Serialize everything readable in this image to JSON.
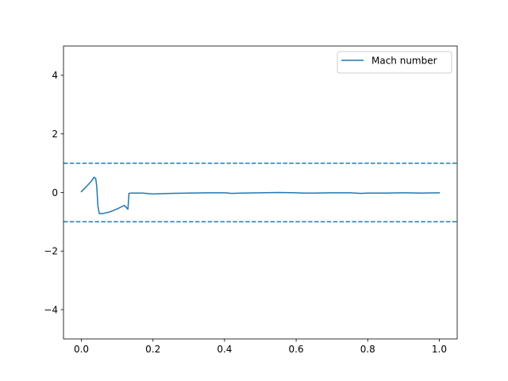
{
  "chart_data": {
    "type": "line",
    "title": "",
    "xlabel": "",
    "ylabel": "",
    "xlim": [
      -0.05,
      1.05
    ],
    "ylim": [
      -5,
      5
    ],
    "xticks": [
      0.0,
      0.2,
      0.4,
      0.6,
      0.8,
      1.0
    ],
    "xtick_labels": [
      "0.0",
      "0.2",
      "0.4",
      "0.6",
      "0.8",
      "1.0"
    ],
    "yticks": [
      -4,
      -2,
      0,
      2,
      4
    ],
    "ytick_labels": [
      "−4",
      "−2",
      "0",
      "2",
      "4"
    ],
    "grid": false,
    "legend": {
      "location": "upper right",
      "entries": [
        "Mach number"
      ]
    },
    "series": [
      {
        "name": "Mach number",
        "color": "#1f77b4",
        "style": "solid",
        "x": [
          0.0,
          0.01,
          0.02,
          0.03,
          0.035,
          0.04,
          0.043,
          0.046,
          0.05,
          0.06,
          0.08,
          0.1,
          0.12,
          0.126,
          0.13,
          0.133,
          0.14,
          0.17,
          0.2,
          0.25,
          0.3,
          0.35,
          0.4,
          0.42,
          0.45,
          0.5,
          0.55,
          0.6,
          0.62,
          0.65,
          0.7,
          0.75,
          0.78,
          0.8,
          0.85,
          0.9,
          0.95,
          1.0
        ],
        "y": [
          0.03,
          0.15,
          0.28,
          0.42,
          0.52,
          0.48,
          0.2,
          -0.45,
          -0.72,
          -0.72,
          -0.66,
          -0.56,
          -0.44,
          -0.52,
          -0.57,
          -0.03,
          -0.02,
          -0.02,
          -0.05,
          -0.03,
          -0.02,
          -0.01,
          -0.01,
          -0.03,
          -0.02,
          -0.01,
          0.0,
          -0.01,
          -0.02,
          -0.02,
          -0.01,
          -0.01,
          -0.03,
          -0.02,
          -0.02,
          -0.01,
          -0.02,
          -0.01
        ]
      }
    ],
    "reference_lines": [
      {
        "orientation": "horizontal",
        "y": 1,
        "color": "#1f77b4",
        "style": "dashed"
      },
      {
        "orientation": "horizontal",
        "y": -1,
        "color": "#1f77b4",
        "style": "dashed"
      }
    ]
  }
}
